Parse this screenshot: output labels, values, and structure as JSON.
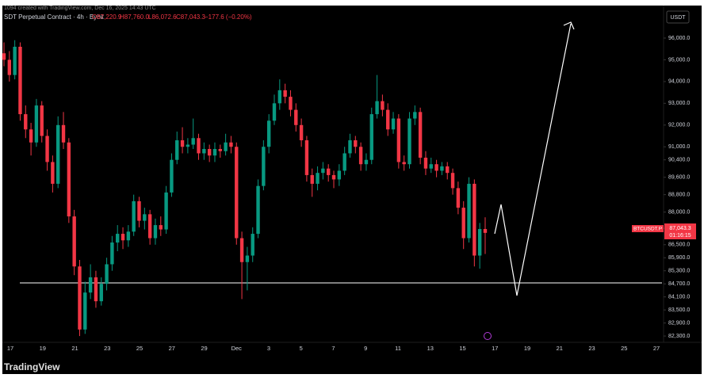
{
  "chart_data": {
    "type": "candlestick",
    "watermark": "1094 created with TradingView.com, Dec 16, 2025 14:43 UTC",
    "legend": {
      "symbol": "SDT Perpetual Contract · 4h · Bybit",
      "open": "O87,220.9",
      "high": "H87,760.0",
      "low": "L86,072.6",
      "close": "C87,043.3",
      "change": "−177.6 (−0.20%)"
    },
    "currency_button": "USDT",
    "price_tag": {
      "symbol": "BTCUSDT.P",
      "price": "87,043.3",
      "countdown": "01:16:15"
    },
    "logo": "TradingView",
    "up_color": "#089981",
    "down_color": "#f23645",
    "ylim": [
      82000,
      96900
    ],
    "yticks": [
      {
        "value": 96000,
        "label": "96,000.0"
      },
      {
        "value": 95000,
        "label": "95,000.0"
      },
      {
        "value": 94000,
        "label": "94,000.0"
      },
      {
        "value": 93000,
        "label": "93,000.0"
      },
      {
        "value": 92000,
        "label": "92,000.0"
      },
      {
        "value": 91000,
        "label": "91,000.0"
      },
      {
        "value": 90400,
        "label": "90,400.0"
      },
      {
        "value": 89600,
        "label": "89,600.0"
      },
      {
        "value": 88800,
        "label": "88,800.0"
      },
      {
        "value": 88000,
        "label": "88,000.0"
      },
      {
        "value": 87250,
        "label": "87,250.0"
      },
      {
        "value": 86500,
        "label": "86,500.0"
      },
      {
        "value": 85900,
        "label": "85,900.0"
      },
      {
        "value": 85300,
        "label": "85,300.0"
      },
      {
        "value": 84700,
        "label": "84,700.0"
      },
      {
        "value": 84100,
        "label": "84,100.0"
      },
      {
        "value": 83500,
        "label": "83,500.0"
      },
      {
        "value": 82900,
        "label": "82,900.0"
      },
      {
        "value": 82300,
        "label": "82,300.0"
      }
    ],
    "x_labels": [
      "17",
      "19",
      "21",
      "23",
      "25",
      "27",
      "29",
      "Dec",
      "3",
      "5",
      "7",
      "9",
      "11",
      "13",
      "15",
      "17",
      "19",
      "21",
      "23",
      "25",
      "27"
    ],
    "candles": [
      [
        95300,
        95800,
        94700,
        95000
      ],
      [
        95000,
        95400,
        94000,
        94300
      ],
      [
        94300,
        95900,
        94100,
        95600
      ],
      [
        95600,
        95800,
        92200,
        92500
      ],
      [
        92500,
        92900,
        91400,
        91800
      ],
      [
        91800,
        92100,
        90600,
        91200
      ],
      [
        91200,
        93200,
        91000,
        92900
      ],
      [
        92900,
        93100,
        91200,
        91500
      ],
      [
        91500,
        91800,
        89900,
        90300
      ],
      [
        90300,
        90600,
        88900,
        89300
      ],
      [
        89300,
        92400,
        89100,
        92000
      ],
      [
        92000,
        92600,
        90900,
        91200
      ],
      [
        91200,
        91400,
        87500,
        87800
      ],
      [
        87800,
        88100,
        85100,
        85500
      ],
      [
        85500,
        85800,
        82300,
        82600
      ],
      [
        82600,
        84800,
        82400,
        84300
      ],
      [
        84300,
        85600,
        84000,
        85000
      ],
      [
        85000,
        85300,
        83600,
        83900
      ],
      [
        83900,
        85000,
        83700,
        84700
      ],
      [
        84700,
        85900,
        84400,
        85600
      ],
      [
        85600,
        86900,
        85300,
        86600
      ],
      [
        86600,
        87400,
        86200,
        87000
      ],
      [
        87000,
        87300,
        86300,
        86700
      ],
      [
        86700,
        87400,
        86400,
        87100
      ],
      [
        87100,
        88800,
        86900,
        88500
      ],
      [
        88500,
        88700,
        87300,
        87600
      ],
      [
        87600,
        88200,
        87200,
        87900
      ],
      [
        87900,
        88100,
        86500,
        86800
      ],
      [
        86800,
        87700,
        86500,
        87400
      ],
      [
        87400,
        87800,
        86900,
        87200
      ],
      [
        87200,
        89200,
        87000,
        88900
      ],
      [
        88900,
        90700,
        88700,
        90400
      ],
      [
        90400,
        91700,
        90200,
        91300
      ],
      [
        91300,
        91900,
        90700,
        91000
      ],
      [
        91000,
        91400,
        90700,
        91100
      ],
      [
        91100,
        92300,
        90900,
        91400
      ],
      [
        91400,
        91600,
        90400,
        90700
      ],
      [
        90700,
        91200,
        90400,
        90900
      ],
      [
        90900,
        91100,
        90300,
        90600
      ],
      [
        90600,
        91200,
        90300,
        90900
      ],
      [
        90900,
        91100,
        90500,
        90800
      ],
      [
        90800,
        91600,
        90600,
        91200
      ],
      [
        91200,
        91500,
        90700,
        91000
      ],
      [
        91000,
        91200,
        86500,
        86800
      ],
      [
        86800,
        87100,
        84000,
        85700
      ],
      [
        85700,
        86400,
        84400,
        86000
      ],
      [
        86000,
        87300,
        85700,
        87000
      ],
      [
        87000,
        89500,
        86800,
        89200
      ],
      [
        89200,
        91300,
        89000,
        91000
      ],
      [
        91000,
        92500,
        90700,
        92200
      ],
      [
        92200,
        93400,
        92000,
        93000
      ],
      [
        93000,
        94100,
        92700,
        93600
      ],
      [
        93600,
        93900,
        93000,
        93300
      ],
      [
        93300,
        93600,
        92400,
        92700
      ],
      [
        92700,
        93000,
        91700,
        92000
      ],
      [
        92000,
        92300,
        91000,
        91300
      ],
      [
        91300,
        91500,
        89400,
        89700
      ],
      [
        89700,
        90000,
        88700,
        89300
      ],
      [
        89300,
        90100,
        89000,
        89800
      ],
      [
        89800,
        90300,
        89500,
        90000
      ],
      [
        90000,
        90200,
        89400,
        89700
      ],
      [
        89700,
        89900,
        89100,
        89500
      ],
      [
        89500,
        90200,
        89200,
        89900
      ],
      [
        89900,
        91000,
        89700,
        90700
      ],
      [
        90700,
        91600,
        90500,
        91300
      ],
      [
        91300,
        91500,
        90700,
        91000
      ],
      [
        91000,
        91200,
        89900,
        90200
      ],
      [
        90200,
        90700,
        89900,
        90400
      ],
      [
        90400,
        92800,
        90200,
        92500
      ],
      [
        92500,
        94300,
        92300,
        93100
      ],
      [
        93100,
        93400,
        92400,
        92700
      ],
      [
        92700,
        93000,
        91500,
        91800
      ],
      [
        91800,
        92600,
        91600,
        92300
      ],
      [
        92300,
        92500,
        90000,
        90300
      ],
      [
        90300,
        90600,
        89900,
        90200
      ],
      [
        90200,
        92600,
        90000,
        92300
      ],
      [
        92300,
        92900,
        92000,
        92600
      ],
      [
        92600,
        92800,
        90200,
        90500
      ],
      [
        90500,
        90800,
        89700,
        90000
      ],
      [
        90000,
        90500,
        89800,
        90200
      ],
      [
        90200,
        90400,
        89600,
        89900
      ],
      [
        89900,
        90300,
        89700,
        90100
      ],
      [
        90100,
        90300,
        89500,
        89800
      ],
      [
        89800,
        90000,
        88800,
        89100
      ],
      [
        89100,
        89400,
        87900,
        88200
      ],
      [
        88200,
        88500,
        86300,
        86800
      ],
      [
        86800,
        89600,
        86600,
        89300
      ],
      [
        89300,
        89500,
        85500,
        86000
      ],
      [
        86000,
        87500,
        85400,
        87220.9
      ],
      [
        87220.9,
        87760,
        86072.6,
        87043.3
      ]
    ]
  }
}
